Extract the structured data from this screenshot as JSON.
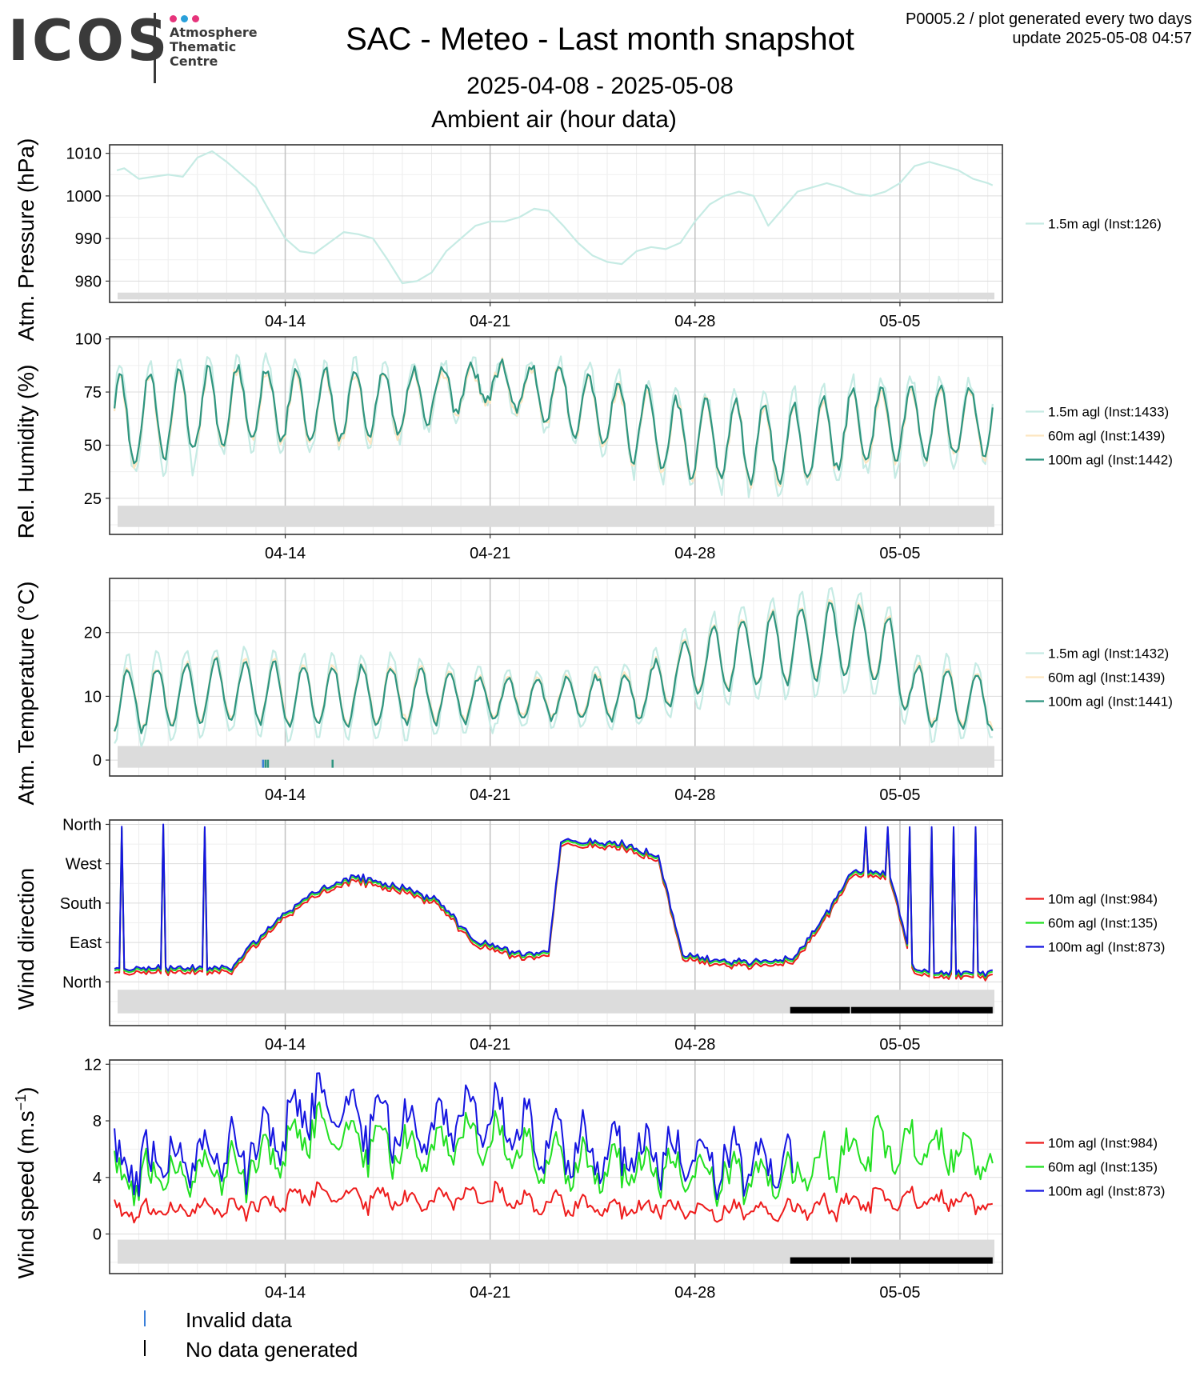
{
  "header": {
    "logo_text": "ICOS",
    "logo_lines": [
      "Atmosphere",
      "Thematic",
      "Centre"
    ],
    "logo_dot_colors": [
      "#e6347b",
      "#2aa0da",
      "#e6347b"
    ],
    "title": "SAC - Meteo - Last month snapshot",
    "date_range": "2025-04-08 - 2025-05-08",
    "section": "Ambient air (hour data)",
    "meta_line1": "P0005.2 / plot generated every two days",
    "meta_line2": "update  2025-05-08 04:57"
  },
  "footer_legend": [
    {
      "label": "Invalid data",
      "color": "#3a7fd9"
    },
    {
      "label": "No data generated",
      "color": "#000000"
    }
  ],
  "chart_data": [
    {
      "type": "line",
      "ylabel": "Atm. Pressure (hPa)",
      "ylim": [
        975,
        1012
      ],
      "yticks": [
        980,
        990,
        1000,
        1010
      ],
      "xlim": [
        "2025-04-08",
        "2025-05-08 12:00"
      ],
      "xticks": [
        {
          "date": "2025-04-14",
          "label": "04-14"
        },
        {
          "date": "2025-04-21",
          "label": "04-21"
        },
        {
          "date": "2025-04-28",
          "label": "04-28"
        },
        {
          "date": "2025-05-05",
          "label": "05-05"
        }
      ],
      "grid": true,
      "status_band": [
        975.7,
        977.3
      ],
      "series": [
        {
          "name": "1.5m agl (Inst:126)",
          "color": "#c6ebe4",
          "x": [
            "2025-04-08 06:00",
            "2025-04-08 12:00",
            "2025-04-09 00:00",
            "2025-04-09 12:00",
            "2025-04-10 00:00",
            "2025-04-10 12:00",
            "2025-04-11 00:00",
            "2025-04-11 12:00",
            "2025-04-12 00:00",
            "2025-04-12 12:00",
            "2025-04-13 00:00",
            "2025-04-13 12:00",
            "2025-04-14 00:00",
            "2025-04-14 12:00",
            "2025-04-15 00:00",
            "2025-04-15 12:00",
            "2025-04-16 00:00",
            "2025-04-16 12:00",
            "2025-04-17 00:00",
            "2025-04-17 12:00",
            "2025-04-18 00:00",
            "2025-04-18 12:00",
            "2025-04-19 00:00",
            "2025-04-19 12:00",
            "2025-04-20 00:00",
            "2025-04-20 12:00",
            "2025-04-21 00:00",
            "2025-04-21 12:00",
            "2025-04-22 00:00",
            "2025-04-22 12:00",
            "2025-04-23 00:00",
            "2025-04-23 12:00",
            "2025-04-24 00:00",
            "2025-04-24 12:00",
            "2025-04-25 00:00",
            "2025-04-25 12:00",
            "2025-04-26 00:00",
            "2025-04-26 12:00",
            "2025-04-27 00:00",
            "2025-04-27 12:00",
            "2025-04-28 00:00",
            "2025-04-28 12:00",
            "2025-04-29 00:00",
            "2025-04-29 12:00",
            "2025-04-30 00:00",
            "2025-04-30 12:00",
            "2025-05-01 00:00",
            "2025-05-01 12:00",
            "2025-05-02 00:00",
            "2025-05-02 12:00",
            "2025-05-03 00:00",
            "2025-05-03 12:00",
            "2025-05-04 00:00",
            "2025-05-04 12:00",
            "2025-05-05 00:00",
            "2025-05-05 12:00",
            "2025-05-06 00:00",
            "2025-05-06 12:00",
            "2025-05-07 00:00",
            "2025-05-07 12:00",
            "2025-05-08 00:00",
            "2025-05-08 04:00"
          ],
          "y": [
            1006,
            1006.5,
            1004,
            1004.5,
            1005,
            1004.5,
            1009,
            1010.5,
            1008,
            1005,
            1002,
            996,
            990,
            987,
            986.5,
            989,
            991.5,
            991,
            990,
            985,
            979.5,
            980,
            982,
            987,
            990,
            993,
            994,
            994,
            995,
            997,
            996.5,
            993,
            989,
            986,
            984.5,
            984,
            987,
            988,
            987.5,
            989,
            994,
            998,
            1000,
            1001,
            1000,
            993,
            997,
            1001,
            1002,
            1003,
            1002,
            1000.5,
            1000,
            1001,
            1003,
            1007,
            1008,
            1007,
            1006,
            1004,
            1003,
            1002.5
          ]
        }
      ]
    },
    {
      "type": "line",
      "ylabel": "Rel. Humidity (%)",
      "ylim": [
        8,
        101
      ],
      "yticks": [
        25,
        50,
        75,
        100
      ],
      "xlim": [
        "2025-04-08",
        "2025-05-08 12:00"
      ],
      "xticks": [
        {
          "date": "2025-04-14",
          "label": "04-14"
        },
        {
          "date": "2025-04-21",
          "label": "04-21"
        },
        {
          "date": "2025-04-28",
          "label": "04-28"
        },
        {
          "date": "2025-05-05",
          "label": "05-05"
        }
      ],
      "grid": true,
      "status_band": [
        11.5,
        21.5
      ],
      "series": [
        {
          "name": "1.5m agl (Inst:1433)",
          "color": "#c6ebe4",
          "x": [],
          "y": []
        },
        {
          "name": "60m agl (Inst:1439)",
          "color": "#fde6c1",
          "x": [],
          "y": []
        },
        {
          "name": "100m agl (Inst:1442)",
          "color": "#2e9580",
          "x": [],
          "y": []
        }
      ]
    },
    {
      "type": "line",
      "ylabel": "Atm. Temperature (°C)",
      "ylim": [
        -2.5,
        28.5
      ],
      "yticks": [
        0,
        10,
        20
      ],
      "xlim": [
        "2025-04-08",
        "2025-05-08 12:00"
      ],
      "xticks": [
        {
          "date": "2025-04-14",
          "label": "04-14"
        },
        {
          "date": "2025-04-21",
          "label": "04-21"
        },
        {
          "date": "2025-04-28",
          "label": "04-28"
        },
        {
          "date": "2025-05-05",
          "label": "05-05"
        }
      ],
      "grid": true,
      "status_band": [
        -1.2,
        2.2
      ],
      "series": [
        {
          "name": "1.5m agl (Inst:1432)",
          "color": "#c6ebe4",
          "x": [],
          "y": []
        },
        {
          "name": "60m agl (Inst:1439)",
          "color": "#fde6c1",
          "x": [],
          "y": []
        },
        {
          "name": "100m agl (Inst:1441)",
          "color": "#2e9580",
          "x": [],
          "y": []
        }
      ]
    },
    {
      "type": "line",
      "ylabel": "Wind direction",
      "ylim": [
        -100,
        370
      ],
      "yticks": [
        0,
        90,
        180,
        270,
        360
      ],
      "yticklabels": [
        "North",
        "East",
        "South",
        "West",
        "North"
      ],
      "xlim": [
        "2025-04-08",
        "2025-05-08 12:00"
      ],
      "xticks": [
        {
          "date": "2025-04-14",
          "label": "04-14"
        },
        {
          "date": "2025-04-21",
          "label": "04-21"
        },
        {
          "date": "2025-04-28",
          "label": "04-28"
        },
        {
          "date": "2025-05-05",
          "label": "05-05"
        }
      ],
      "grid": true,
      "status_band": [
        -72,
        -18
      ],
      "no_data": [
        [
          "2025-05-01 06:00",
          "2025-05-03 07:00"
        ],
        [
          "2025-05-03 08:00",
          "2025-05-08 04:00"
        ]
      ],
      "series": [
        {
          "name": "10m agl (Inst:984)",
          "color": "#ee1c1c",
          "x": [],
          "y": []
        },
        {
          "name": "60m agl (Inst:135)",
          "color": "#22e022",
          "x": [],
          "y": []
        },
        {
          "name": "100m agl (Inst:873)",
          "color": "#1515e0",
          "x": [],
          "y": []
        }
      ]
    },
    {
      "type": "line",
      "ylabel": "Wind speed (m.s−1)",
      "ylim": [
        -2.8,
        12.3
      ],
      "yticks": [
        0,
        4,
        8,
        12
      ],
      "xlim": [
        "2025-04-08",
        "2025-05-08 12:00"
      ],
      "xticks": [
        {
          "date": "2025-04-14",
          "label": "04-14"
        },
        {
          "date": "2025-04-21",
          "label": "04-21"
        },
        {
          "date": "2025-04-28",
          "label": "04-28"
        },
        {
          "date": "2025-05-05",
          "label": "05-05"
        }
      ],
      "grid": true,
      "status_band": [
        -2.1,
        -0.4
      ],
      "no_data": [
        [
          "2025-05-01 06:00",
          "2025-05-03 07:00"
        ],
        [
          "2025-05-03 08:00",
          "2025-05-08 04:00"
        ]
      ],
      "series": [
        {
          "name": "10m agl (Inst:984)",
          "color": "#ee1c1c",
          "x": [],
          "y": []
        },
        {
          "name": "60m agl (Inst:135)",
          "color": "#22e022",
          "x": [],
          "y": []
        },
        {
          "name": "100m agl (Inst:873)",
          "color": "#1515e0",
          "x": [],
          "y": []
        }
      ]
    }
  ]
}
